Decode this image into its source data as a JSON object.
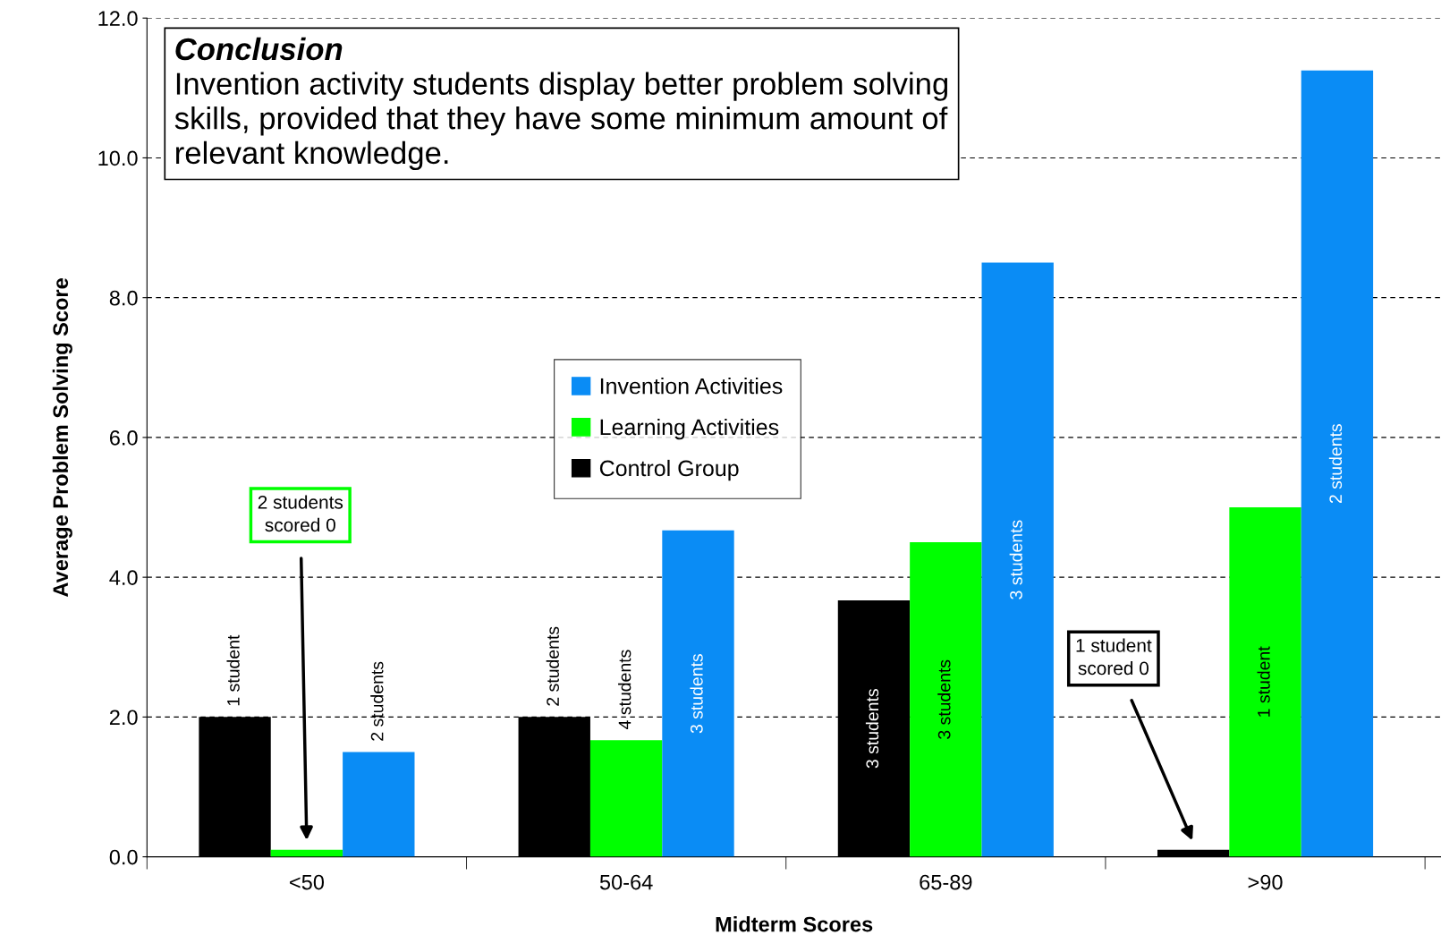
{
  "chart_data": {
    "type": "bar",
    "xlabel": "Midterm Scores",
    "ylabel": "Average Problem Solving Score",
    "categories": [
      "<50",
      "50-64",
      "65-89",
      ">90"
    ],
    "series": [
      {
        "name": "Control Group",
        "color": "#000000",
        "values": [
          2.0,
          2.0,
          3.67,
          0.1
        ]
      },
      {
        "name": "Learning Activities",
        "color": "#00ff00",
        "values": [
          0.1,
          1.67,
          4.5,
          5.0
        ]
      },
      {
        "name": "Invention Activities",
        "color": "#0a8cf5",
        "values": [
          1.5,
          4.67,
          8.5,
          11.25
        ]
      }
    ],
    "ylim": [
      0,
      12
    ],
    "yticks": [
      {
        "value": 0,
        "label": "0.0"
      },
      {
        "value": 2,
        "label": "2.0"
      },
      {
        "value": 4,
        "label": "4.0"
      },
      {
        "value": 6,
        "label": "6.0"
      },
      {
        "value": 8,
        "label": "8.0"
      },
      {
        "value": 10,
        "label": "10.0"
      },
      {
        "value": 12,
        "label": "12.0"
      }
    ],
    "grid": "y",
    "legend": "center",
    "annotations": [
      "Conclusion",
      "Invention activity students display better problem solving\nskills, provided that they have some minimum amount of\nrelevant knowledge.",
      "1 student",
      "2 students",
      "2 students",
      "4 students",
      "3 students",
      "3 students",
      "3 students",
      "3 students",
      "1 student",
      "2 students",
      "2 students\nscored 0",
      "1 student\nscored 0"
    ]
  }
}
